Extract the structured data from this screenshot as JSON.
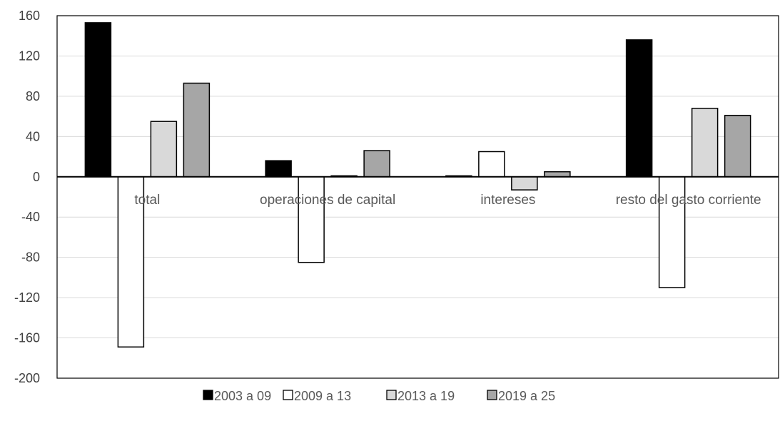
{
  "chart_data": {
    "type": "bar",
    "categories": [
      "total",
      "operaciones de capital",
      "intereses",
      "resto del gasto corriente"
    ],
    "series": [
      {
        "name": "2003 a 09",
        "color": "#000000",
        "values": [
          153,
          16,
          1,
          136
        ]
      },
      {
        "name": "2009 a 13",
        "color": "#ffffff",
        "values": [
          -169,
          -85,
          25,
          -110
        ]
      },
      {
        "name": "2013 a 19",
        "color": "#d9d9d9",
        "values": [
          55,
          1,
          -13,
          68
        ]
      },
      {
        "name": "2019 a 25",
        "color": "#a6a6a6",
        "values": [
          93,
          26,
          5,
          61
        ]
      }
    ],
    "ylim": [
      -200,
      160
    ],
    "yticks": [
      160,
      120,
      80,
      40,
      0,
      -40,
      -80,
      -120,
      -160,
      -200
    ],
    "grid": true,
    "legend_position": "bottom"
  }
}
